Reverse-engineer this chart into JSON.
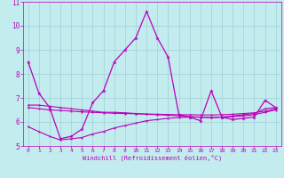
{
  "xlabel": "Windchill (Refroidissement éolien,°C)",
  "bg_color": "#c2ecee",
  "grid_color": "#a0d0d8",
  "line_color": "#bb00bb",
  "xlim": [
    -0.5,
    23.5
  ],
  "ylim": [
    5,
    11
  ],
  "xticks": [
    0,
    1,
    2,
    3,
    4,
    5,
    6,
    7,
    8,
    9,
    10,
    11,
    12,
    13,
    14,
    15,
    16,
    17,
    18,
    19,
    20,
    21,
    22,
    23
  ],
  "yticks": [
    5,
    6,
    7,
    8,
    9,
    10,
    11
  ],
  "series1_x": [
    0,
    1,
    2,
    3,
    4,
    5,
    6,
    7,
    8,
    9,
    10,
    11,
    12,
    13,
    14,
    15,
    16,
    17,
    18,
    19,
    20,
    21,
    22,
    23
  ],
  "series1_y": [
    8.5,
    7.2,
    6.6,
    5.3,
    5.4,
    5.7,
    6.8,
    7.3,
    8.5,
    9.0,
    9.5,
    10.6,
    9.5,
    8.7,
    6.3,
    6.2,
    6.05,
    7.3,
    6.2,
    6.1,
    6.15,
    6.2,
    6.9,
    6.6
  ],
  "series2_x": [
    0,
    1,
    2,
    3,
    4,
    5,
    6,
    7,
    8,
    9,
    10,
    11,
    12,
    13,
    14,
    15,
    16,
    17,
    18,
    19,
    20,
    21,
    22,
    23
  ],
  "series2_y": [
    6.7,
    6.7,
    6.65,
    6.6,
    6.55,
    6.5,
    6.45,
    6.4,
    6.4,
    6.38,
    6.35,
    6.32,
    6.3,
    6.28,
    6.25,
    6.22,
    6.2,
    6.18,
    6.2,
    6.22,
    6.25,
    6.3,
    6.4,
    6.5
  ],
  "series3_x": [
    0,
    1,
    2,
    3,
    4,
    5,
    6,
    7,
    8,
    9,
    10,
    11,
    12,
    13,
    14,
    15,
    16,
    17,
    18,
    19,
    20,
    21,
    22,
    23
  ],
  "series3_y": [
    5.8,
    5.6,
    5.4,
    5.25,
    5.3,
    5.35,
    5.5,
    5.6,
    5.75,
    5.85,
    5.95,
    6.05,
    6.1,
    6.15,
    6.18,
    6.2,
    6.2,
    6.18,
    6.2,
    6.25,
    6.3,
    6.35,
    6.55,
    6.6
  ],
  "series4_x": [
    0,
    1,
    2,
    3,
    4,
    5,
    6,
    7,
    8,
    9,
    10,
    11,
    12,
    13,
    14,
    15,
    16,
    17,
    18,
    19,
    20,
    21,
    22,
    23
  ],
  "series4_y": [
    6.6,
    6.55,
    6.5,
    6.48,
    6.45,
    6.42,
    6.4,
    6.38,
    6.36,
    6.35,
    6.34,
    6.33,
    6.32,
    6.31,
    6.3,
    6.3,
    6.29,
    6.29,
    6.3,
    6.32,
    6.35,
    6.38,
    6.45,
    6.55
  ]
}
